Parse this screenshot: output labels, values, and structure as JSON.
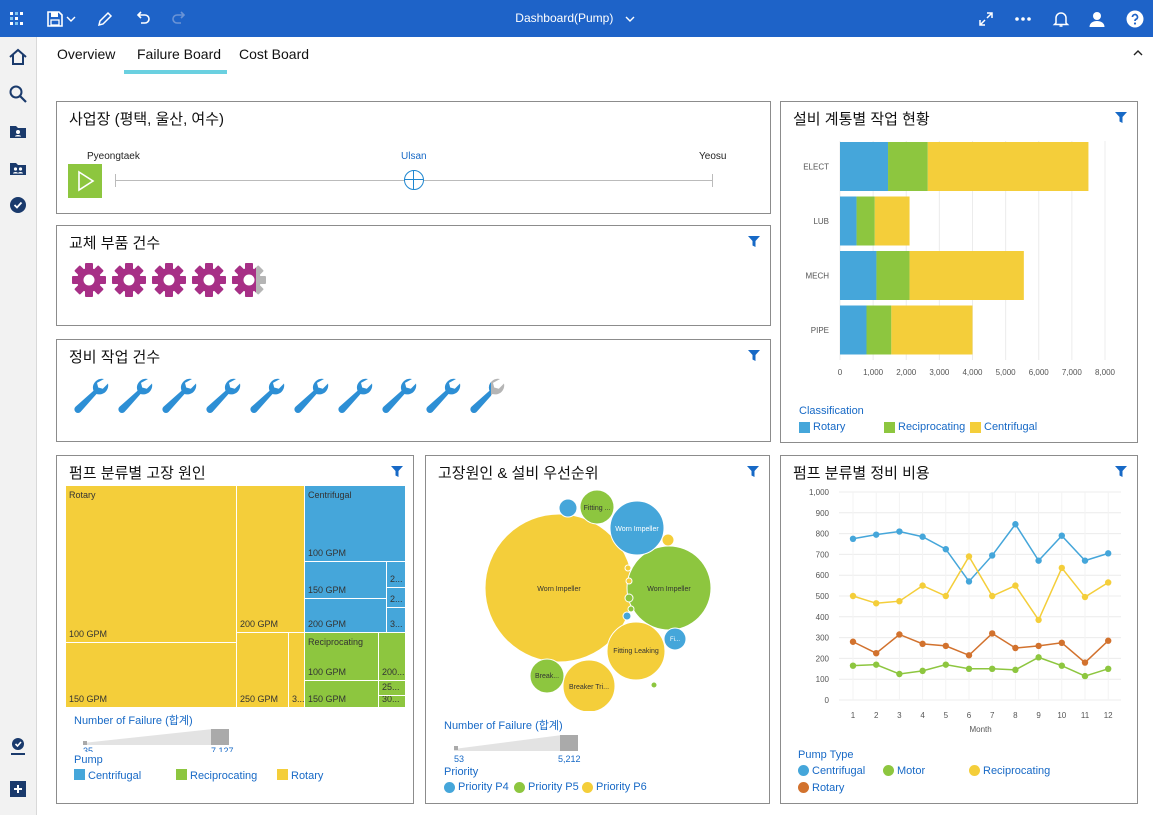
{
  "app": {
    "title": "Dashboard(Pump)"
  },
  "tabs": [
    {
      "label": "Overview"
    },
    {
      "label": "Failure Board",
      "active": true
    },
    {
      "label": "Cost Board"
    }
  ],
  "colors": {
    "topbar": "#1e63c8",
    "blue": "#45a6da",
    "green": "#8dc63f",
    "yellow": "#f4ce3a",
    "orange": "#d2722e",
    "magenta": "#a72f86",
    "tab_accent": "#6ad0e0"
  },
  "site_card": {
    "title": "사업장 (평택, 울산, 여수)",
    "labels": [
      "Pyeongtaek",
      "Ulsan",
      "Yeosu"
    ],
    "selected": "Ulsan"
  },
  "parts_card": {
    "title": "교체 부품 건수",
    "icon": "gear-icon",
    "full_count": 4,
    "partial": 0.7
  },
  "maint_card": {
    "title": "정비 작업 건수",
    "icon": "wrench-icon",
    "full_count": 9,
    "partial": 0.6
  },
  "treemap_card": {
    "title": "펌프 분류별 고장 원인",
    "rotary_label": "Rotary",
    "centrifugal_label": "Centrifugal",
    "reciprocating_label": "Reciprocating",
    "cells": [
      "100 GPM",
      "150 GPM",
      "200 GPM",
      "250 GPM",
      "3...",
      "100 GPM",
      "150 GPM",
      "200 GPM",
      "2...",
      "2...",
      "3...",
      "100 GPM",
      "150 GPM",
      "200...",
      "25...",
      "30..."
    ],
    "scale_label": "Number of Failure (합계)",
    "scale_min": "35",
    "scale_max": "7,127",
    "legend_title": "Pump",
    "legend": [
      "Centrifugal",
      "Reciprocating",
      "Rotary"
    ]
  },
  "bubble_card": {
    "title": "고장원인 & 설비 우선순위",
    "bubble_labels": [
      "Worn Impeller",
      "Worn Impeller",
      "Worn Impeller",
      "Fitting Leaking",
      "Fitting ...",
      "Fi...",
      "Break...",
      "Breaker Tri..."
    ],
    "scale_label": "Number of Failure (합계)",
    "scale_min": "53",
    "scale_max": "5,212",
    "legend_title": "Priority",
    "legend": [
      "Priority P4",
      "Priority P5",
      "Priority P6"
    ]
  },
  "bar_card": {
    "title": "설비 계통별 작업 현황",
    "legend_title": "Classification",
    "legend": [
      "Rotary",
      "Reciprocating",
      "Centrifugal"
    ]
  },
  "line_card": {
    "title": "펌프 분류별 정비 비용",
    "legend_title": "Pump Type",
    "legend": [
      "Centrifugal",
      "Motor",
      "Reciprocating",
      "Rotary"
    ]
  },
  "chart_data": [
    {
      "type": "bar",
      "title": "설비 계통별 작업 현황",
      "orientation": "horizontal",
      "stacked": true,
      "categories": [
        "ELECT",
        "LUB",
        "MECH",
        "PIPE"
      ],
      "series": [
        {
          "name": "Rotary",
          "color": "#45a6da",
          "values": [
            1450,
            500,
            1100,
            800
          ]
        },
        {
          "name": "Reciprocating",
          "color": "#8dc63f",
          "values": [
            1200,
            550,
            1000,
            750
          ]
        },
        {
          "name": "Centrifugal",
          "color": "#f4ce3a",
          "values": [
            4850,
            1050,
            3450,
            2450
          ]
        }
      ],
      "xticks": [
        "0",
        "1,000",
        "2,000",
        "3,000",
        "4,000",
        "5,000",
        "6,000",
        "7,000",
        "8,000"
      ],
      "xlim": [
        0,
        8000
      ],
      "legend_title": "Classification",
      "legend_position": "bottom-left",
      "grid": true
    },
    {
      "type": "line",
      "title": "펌프 분류별 정비 비용",
      "x": [
        1,
        2,
        3,
        4,
        5,
        6,
        7,
        8,
        9,
        10,
        11,
        12
      ],
      "xlabel": "Month",
      "ylim": [
        0,
        1000
      ],
      "yticks": [
        "0",
        "100",
        "200",
        "300",
        "400",
        "500",
        "600",
        "700",
        "800",
        "900",
        "1,000"
      ],
      "series": [
        {
          "name": "Centrifugal",
          "color": "#45a6da",
          "values": [
            775,
            795,
            810,
            785,
            725,
            570,
            695,
            845,
            670,
            790,
            670,
            705
          ]
        },
        {
          "name": "Motor",
          "color": "#8dc63f",
          "values": [
            165,
            170,
            125,
            140,
            170,
            150,
            150,
            145,
            205,
            165,
            115,
            150
          ]
        },
        {
          "name": "Reciprocating",
          "color": "#f4ce3a",
          "values": [
            500,
            465,
            475,
            550,
            500,
            690,
            500,
            550,
            385,
            635,
            495,
            565
          ]
        },
        {
          "name": "Rotary",
          "color": "#d2722e",
          "values": [
            280,
            225,
            315,
            270,
            260,
            215,
            320,
            250,
            260,
            275,
            180,
            285
          ]
        }
      ],
      "legend_title": "Pump Type",
      "legend_position": "bottom",
      "grid": true
    }
  ]
}
